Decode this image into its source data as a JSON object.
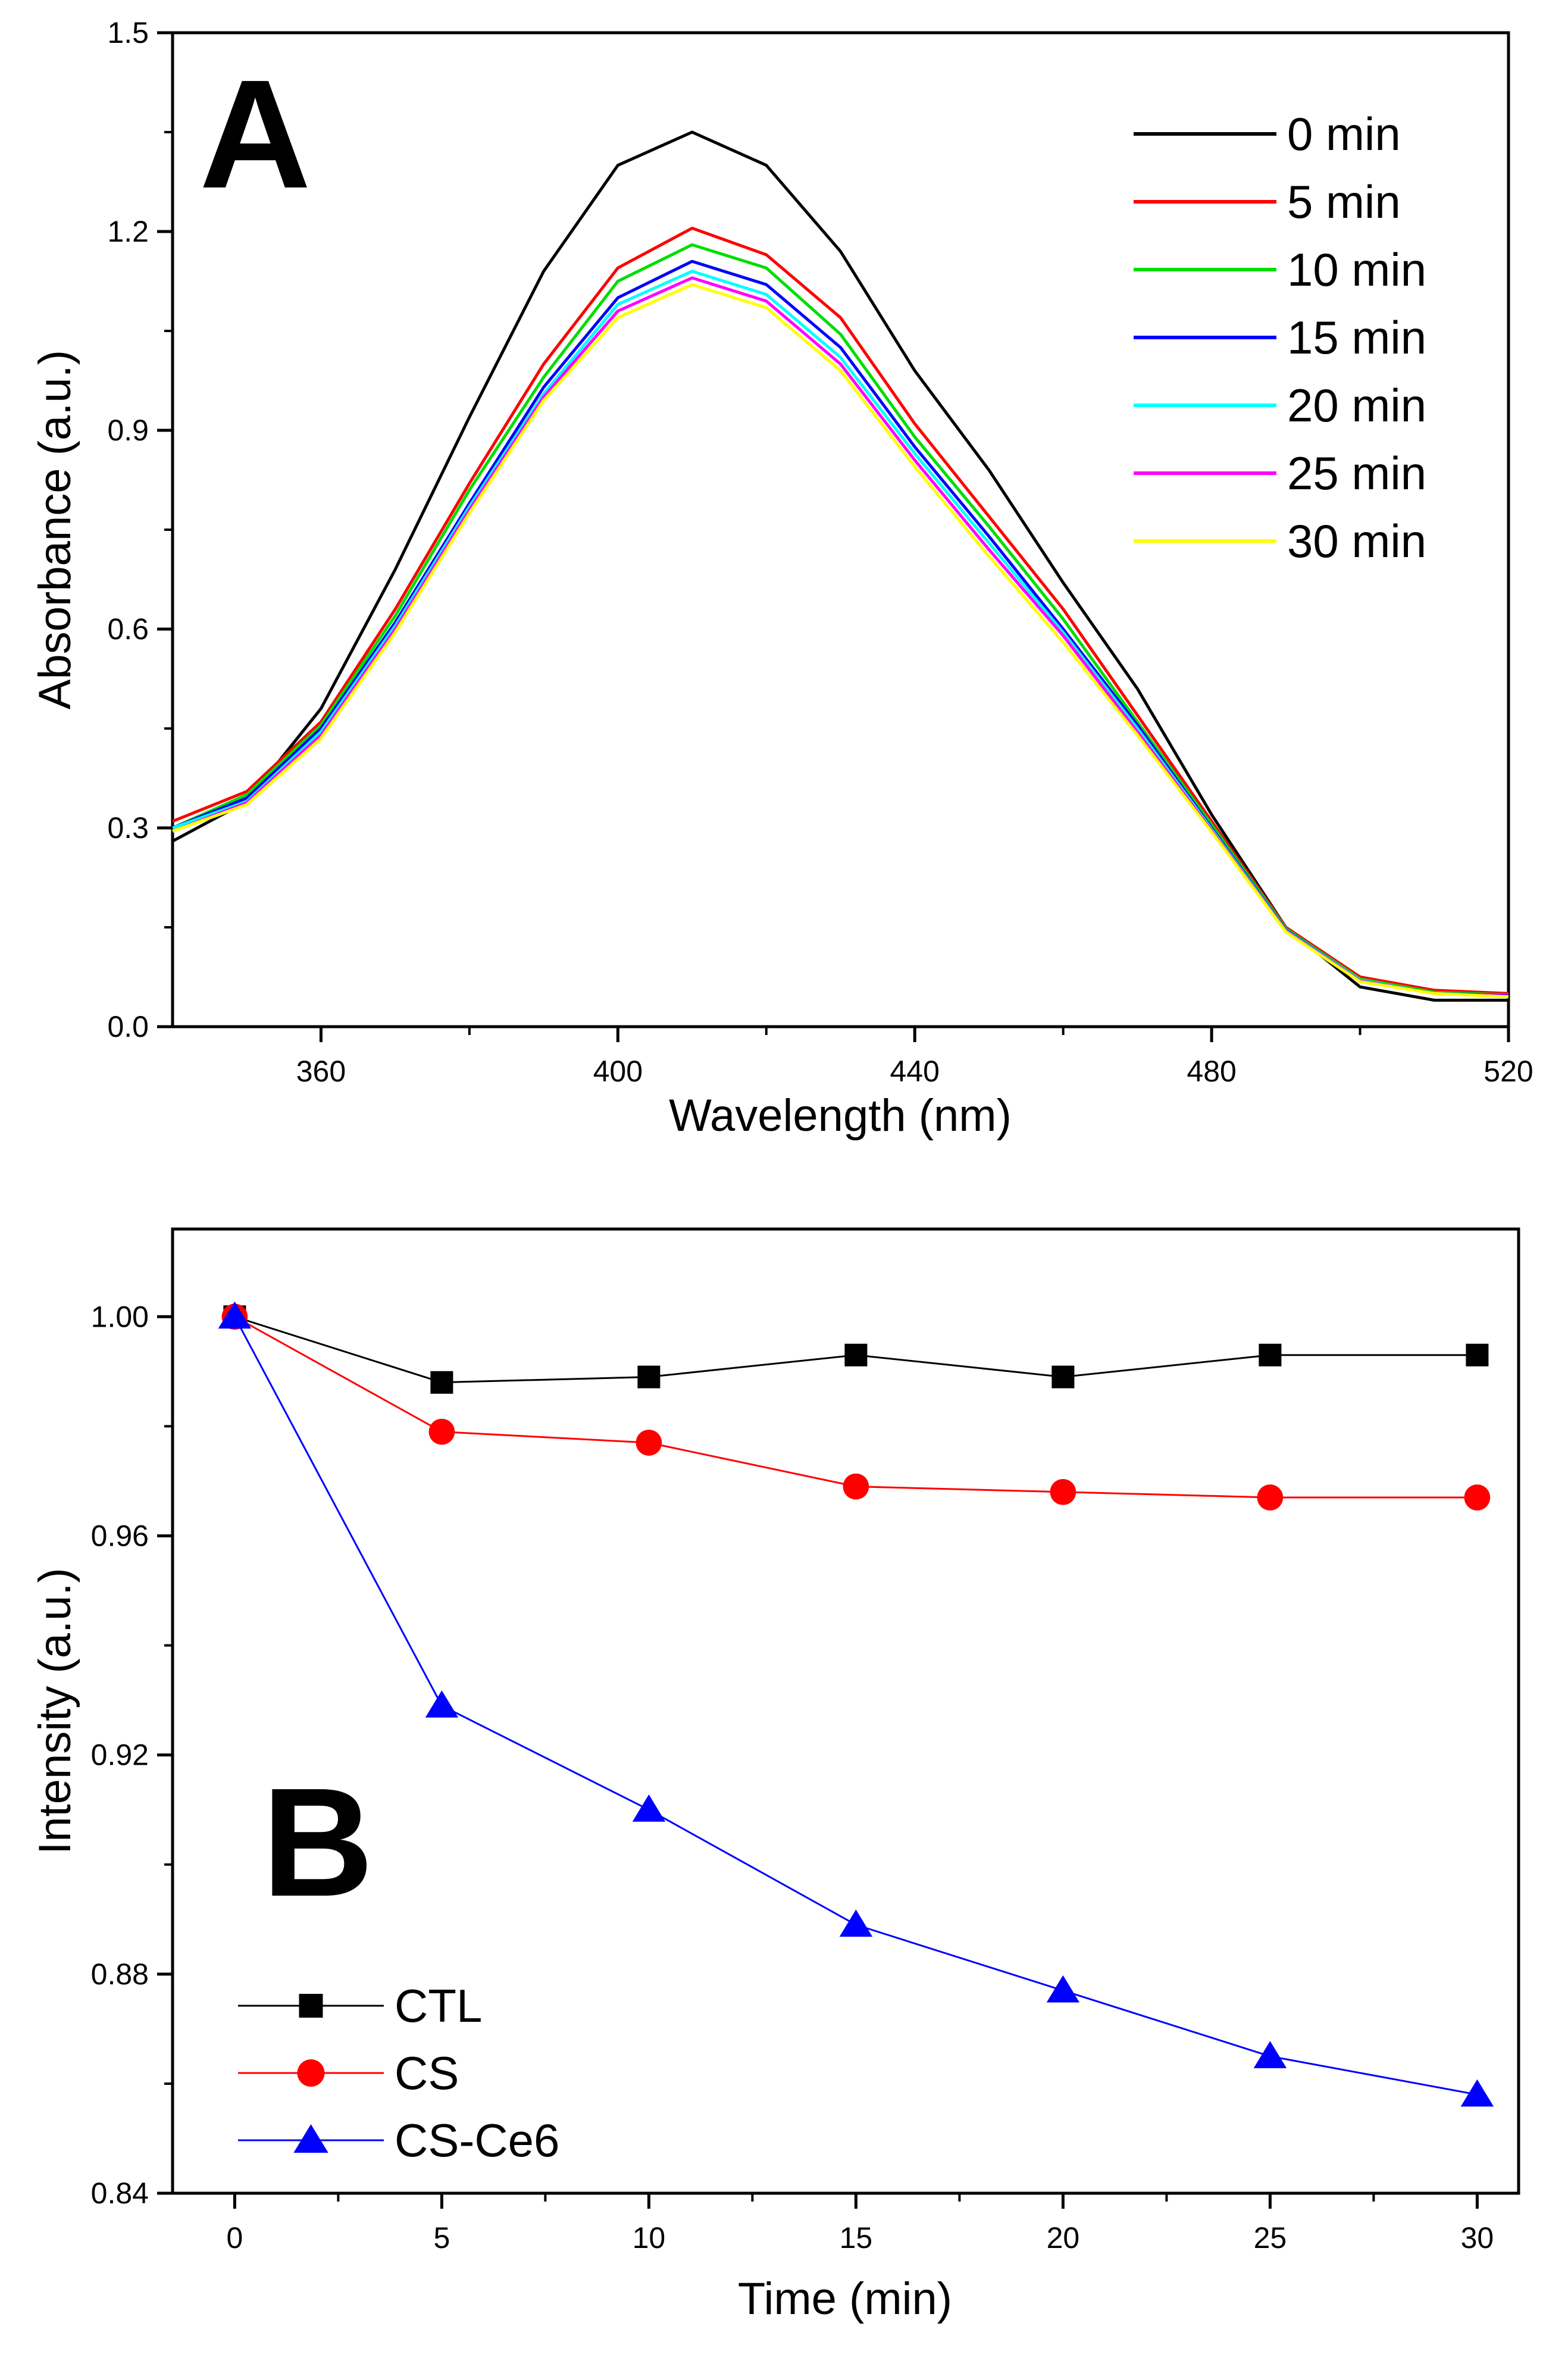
{
  "chart_data": [
    {
      "type": "line",
      "panel_label": "A",
      "xlabel": "Wavelength (nm)",
      "ylabel": "Absorbance (a.u.)",
      "xlim": [
        340,
        520
      ],
      "ylim": [
        0.0,
        1.5
      ],
      "xticks": [
        "360",
        "400",
        "440",
        "480",
        "520"
      ],
      "yticks": [
        "0.0",
        "0.3",
        "0.6",
        "0.9",
        "1.2",
        "1.5"
      ],
      "legend_position": "top-right",
      "x": [
        340,
        350,
        360,
        370,
        380,
        390,
        400,
        410,
        420,
        430,
        440,
        450,
        460,
        470,
        480,
        490,
        500,
        510,
        520
      ],
      "series": [
        {
          "name": "0 min",
          "color": "#000000",
          "values": [
            0.28,
            0.34,
            0.48,
            0.69,
            0.92,
            1.14,
            1.3,
            1.35,
            1.3,
            1.17,
            0.99,
            0.84,
            0.67,
            0.51,
            0.32,
            0.15,
            0.06,
            0.04,
            0.04
          ]
        },
        {
          "name": "5 min",
          "color": "#ff0000",
          "values": [
            0.31,
            0.355,
            0.46,
            0.63,
            0.82,
            1.0,
            1.145,
            1.205,
            1.165,
            1.07,
            0.91,
            0.77,
            0.63,
            0.47,
            0.31,
            0.15,
            0.075,
            0.055,
            0.05
          ]
        },
        {
          "name": "10 min",
          "color": "#00dd00",
          "values": [
            0.3,
            0.35,
            0.455,
            0.62,
            0.81,
            0.98,
            1.125,
            1.18,
            1.145,
            1.045,
            0.89,
            0.755,
            0.615,
            0.46,
            0.305,
            0.148,
            0.072,
            0.052,
            0.048
          ]
        },
        {
          "name": "15 min",
          "color": "#0000ff",
          "values": [
            0.3,
            0.345,
            0.45,
            0.61,
            0.79,
            0.965,
            1.1,
            1.155,
            1.12,
            1.025,
            0.875,
            0.74,
            0.6,
            0.455,
            0.3,
            0.146,
            0.07,
            0.05,
            0.047
          ]
        },
        {
          "name": "20 min",
          "color": "#00ffff",
          "values": [
            0.3,
            0.34,
            0.445,
            0.605,
            0.785,
            0.955,
            1.09,
            1.14,
            1.105,
            1.01,
            0.865,
            0.73,
            0.595,
            0.45,
            0.298,
            0.145,
            0.07,
            0.05,
            0.046
          ]
        },
        {
          "name": "25 min",
          "color": "#ff00ff",
          "values": [
            0.295,
            0.338,
            0.44,
            0.6,
            0.78,
            0.95,
            1.08,
            1.13,
            1.095,
            1.0,
            0.855,
            0.72,
            0.59,
            0.445,
            0.296,
            0.144,
            0.069,
            0.05,
            0.046
          ]
        },
        {
          "name": "30 min",
          "color": "#ffff00",
          "values": [
            0.295,
            0.335,
            0.435,
            0.595,
            0.775,
            0.945,
            1.07,
            1.12,
            1.085,
            0.99,
            0.845,
            0.71,
            0.58,
            0.44,
            0.294,
            0.143,
            0.068,
            0.05,
            0.045
          ]
        }
      ]
    },
    {
      "type": "line",
      "panel_label": "B",
      "xlabel": "Time (min)",
      "ylabel": "Intensity (a.u.)",
      "xlim": [
        -1.5,
        31
      ],
      "ylim": [
        0.84,
        1.016
      ],
      "xticks": [
        "0",
        "5",
        "10",
        "15",
        "20",
        "25",
        "30"
      ],
      "yticks": [
        "0.84",
        "0.88",
        "0.92",
        "0.96",
        "1.00"
      ],
      "legend_position": "bottom-left",
      "x": [
        0,
        5,
        10,
        15,
        20,
        25,
        30
      ],
      "series": [
        {
          "name": "CTL",
          "color": "#000000",
          "marker": "square",
          "values": [
            1.0,
            0.988,
            0.989,
            0.993,
            0.989,
            0.993,
            0.993
          ]
        },
        {
          "name": "CS",
          "color": "#ff0000",
          "marker": "circle",
          "values": [
            1.0,
            0.979,
            0.977,
            0.969,
            0.968,
            0.967,
            0.967
          ]
        },
        {
          "name": "CS-Ce6",
          "color": "#0000ff",
          "marker": "triangle",
          "values": [
            1.0,
            0.929,
            0.91,
            0.889,
            0.877,
            0.865,
            0.858
          ]
        }
      ]
    }
  ]
}
